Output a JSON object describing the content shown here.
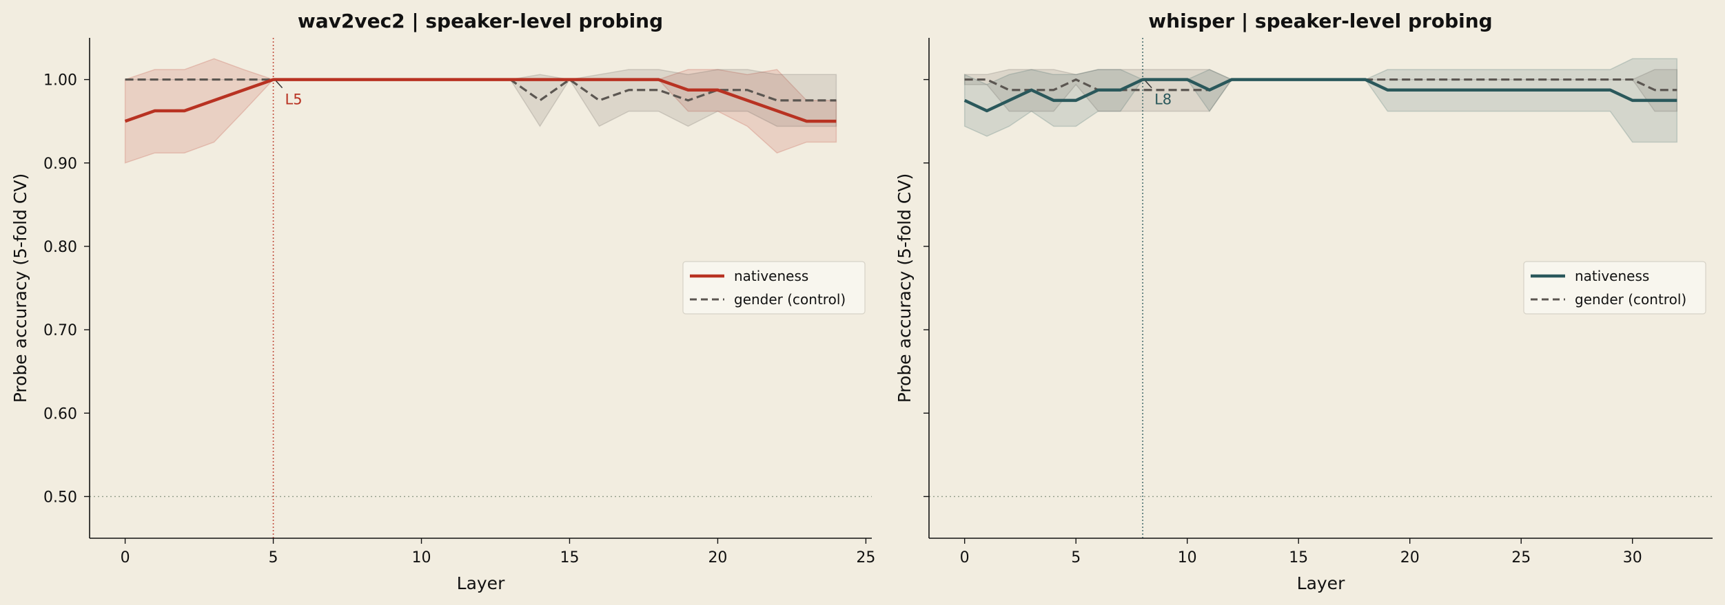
{
  "figure": {
    "background": "#f2ede0"
  },
  "chart_data": [
    {
      "type": "line",
      "title": "wav2vec2  |  speaker-level probing",
      "xlabel": "Layer",
      "ylabel": "Probe accuracy (5-fold CV)",
      "xlim": [
        -1.2,
        25.2
      ],
      "ylim": [
        0.45,
        1.05
      ],
      "xticks": [
        0,
        5,
        10,
        15,
        20,
        25
      ],
      "yticks": [
        0.5,
        0.6,
        0.7,
        0.8,
        0.9,
        1.0
      ],
      "ytick_labels": [
        "0.50",
        "0.60",
        "0.70",
        "0.80",
        "0.90",
        "1.00"
      ],
      "chance_line": 0.5,
      "grid": false,
      "legend_position": "center-right",
      "annotation": {
        "label": "L5",
        "x": 5,
        "y": 1.0,
        "color": "#b83222"
      },
      "series": [
        {
          "name": "nativeness",
          "color": "#b83222",
          "style": "solid",
          "x": [
            0,
            1,
            2,
            3,
            4,
            5,
            6,
            7,
            8,
            9,
            10,
            11,
            12,
            13,
            14,
            15,
            16,
            17,
            18,
            19,
            20,
            21,
            22,
            23,
            24
          ],
          "y": [
            0.95,
            0.9625,
            0.9625,
            0.975,
            0.9875,
            1.0,
            1.0,
            1.0,
            1.0,
            1.0,
            1.0,
            1.0,
            1.0,
            1.0,
            1.0,
            1.0,
            1.0,
            1.0,
            1.0,
            0.9875,
            0.9875,
            0.975,
            0.9625,
            0.95,
            0.95
          ],
          "lower": [
            0.9,
            0.912,
            0.912,
            0.925,
            0.962,
            1.0,
            1.0,
            1.0,
            1.0,
            1.0,
            1.0,
            1.0,
            1.0,
            1.0,
            1.0,
            1.0,
            1.0,
            1.0,
            1.0,
            0.962,
            0.962,
            0.944,
            0.912,
            0.925,
            0.925
          ],
          "upper": [
            1.0,
            1.012,
            1.012,
            1.025,
            1.012,
            1.0,
            1.0,
            1.0,
            1.0,
            1.0,
            1.0,
            1.0,
            1.0,
            1.0,
            1.0,
            1.0,
            1.0,
            1.0,
            1.0,
            1.012,
            1.012,
            1.006,
            1.012,
            0.975,
            0.975
          ]
        },
        {
          "name": "gender (control)",
          "color": "#5b5651",
          "style": "dashed",
          "x": [
            0,
            1,
            2,
            3,
            4,
            5,
            6,
            7,
            8,
            9,
            10,
            11,
            12,
            13,
            14,
            15,
            16,
            17,
            18,
            19,
            20,
            21,
            22,
            23,
            24
          ],
          "y": [
            1.0,
            1.0,
            1.0,
            1.0,
            1.0,
            1.0,
            1.0,
            1.0,
            1.0,
            1.0,
            1.0,
            1.0,
            1.0,
            1.0,
            0.975,
            1.0,
            0.975,
            0.9875,
            0.9875,
            0.975,
            0.9875,
            0.9875,
            0.975,
            0.975,
            0.975
          ],
          "lower": [
            1.0,
            1.0,
            1.0,
            1.0,
            1.0,
            1.0,
            1.0,
            1.0,
            1.0,
            1.0,
            1.0,
            1.0,
            1.0,
            1.0,
            0.944,
            1.0,
            0.944,
            0.962,
            0.962,
            0.944,
            0.962,
            0.962,
            0.944,
            0.944,
            0.944
          ],
          "upper": [
            1.0,
            1.0,
            1.0,
            1.0,
            1.0,
            1.0,
            1.0,
            1.0,
            1.0,
            1.0,
            1.0,
            1.0,
            1.0,
            1.0,
            1.006,
            1.0,
            1.006,
            1.012,
            1.012,
            1.006,
            1.012,
            1.012,
            1.006,
            1.006,
            1.006
          ]
        }
      ]
    },
    {
      "type": "line",
      "title": "whisper  |  speaker-level probing",
      "xlabel": "Layer",
      "ylabel": "Probe accuracy (5-fold CV)",
      "xlim": [
        -1.6,
        33.6
      ],
      "ylim": [
        0.45,
        1.05
      ],
      "xticks": [
        0,
        5,
        10,
        15,
        20,
        25,
        30
      ],
      "yticks": [
        0.5,
        0.6,
        0.7,
        0.8,
        0.9,
        1.0
      ],
      "ytick_labels": [],
      "chance_line": 0.5,
      "grid": false,
      "legend_position": "center-right",
      "annotation": {
        "label": "L8",
        "x": 8,
        "y": 1.0,
        "color": "#2a585b"
      },
      "series": [
        {
          "name": "nativeness",
          "color": "#2a585b",
          "style": "solid",
          "x": [
            0,
            1,
            2,
            3,
            4,
            5,
            6,
            7,
            8,
            9,
            10,
            11,
            12,
            13,
            14,
            15,
            16,
            17,
            18,
            19,
            20,
            21,
            22,
            23,
            24,
            25,
            26,
            27,
            28,
            29,
            30,
            31,
            32
          ],
          "y": [
            0.975,
            0.9625,
            0.975,
            0.9875,
            0.975,
            0.975,
            0.9875,
            0.9875,
            1.0,
            1.0,
            1.0,
            0.9875,
            1.0,
            1.0,
            1.0,
            1.0,
            1.0,
            1.0,
            1.0,
            0.9875,
            0.9875,
            0.9875,
            0.9875,
            0.9875,
            0.9875,
            0.9875,
            0.9875,
            0.9875,
            0.9875,
            0.9875,
            0.975,
            0.975,
            0.975
          ],
          "lower": [
            0.944,
            0.932,
            0.944,
            0.962,
            0.944,
            0.944,
            0.962,
            0.962,
            1.0,
            1.0,
            1.0,
            0.962,
            1.0,
            1.0,
            1.0,
            1.0,
            1.0,
            1.0,
            1.0,
            0.962,
            0.962,
            0.962,
            0.962,
            0.962,
            0.962,
            0.962,
            0.962,
            0.962,
            0.962,
            0.962,
            0.925,
            0.925,
            0.925
          ],
          "upper": [
            1.006,
            0.994,
            1.006,
            1.012,
            1.006,
            1.006,
            1.012,
            1.012,
            1.0,
            1.0,
            1.0,
            1.012,
            1.0,
            1.0,
            1.0,
            1.0,
            1.0,
            1.0,
            1.0,
            1.012,
            1.012,
            1.012,
            1.012,
            1.012,
            1.012,
            1.012,
            1.012,
            1.012,
            1.012,
            1.012,
            1.025,
            1.025,
            1.025
          ]
        },
        {
          "name": "gender (control)",
          "color": "#5b5651",
          "style": "dashed",
          "x": [
            0,
            1,
            2,
            3,
            4,
            5,
            6,
            7,
            8,
            9,
            10,
            11,
            12,
            13,
            14,
            15,
            16,
            17,
            18,
            19,
            20,
            21,
            22,
            23,
            24,
            25,
            26,
            27,
            28,
            29,
            30,
            31,
            32
          ],
          "y": [
            1.0,
            1.0,
            0.9875,
            0.9875,
            0.9875,
            1.0,
            0.9875,
            0.9875,
            0.9875,
            0.9875,
            0.9875,
            0.9875,
            1.0,
            1.0,
            1.0,
            1.0,
            1.0,
            1.0,
            1.0,
            1.0,
            1.0,
            1.0,
            1.0,
            1.0,
            1.0,
            1.0,
            1.0,
            1.0,
            1.0,
            1.0,
            1.0,
            0.9875,
            0.9875
          ],
          "lower": [
            0.994,
            0.994,
            0.962,
            0.962,
            0.962,
            0.994,
            0.962,
            0.962,
            0.962,
            0.962,
            0.962,
            0.962,
            1.0,
            1.0,
            1.0,
            1.0,
            1.0,
            1.0,
            1.0,
            1.0,
            1.0,
            1.0,
            1.0,
            1.0,
            1.0,
            1.0,
            1.0,
            1.0,
            1.0,
            1.0,
            1.0,
            0.962,
            0.962
          ],
          "upper": [
            1.006,
            1.006,
            1.012,
            1.012,
            1.012,
            1.006,
            1.012,
            1.012,
            1.012,
            1.012,
            1.012,
            1.012,
            1.0,
            1.0,
            1.0,
            1.0,
            1.0,
            1.0,
            1.0,
            1.0,
            1.0,
            1.0,
            1.0,
            1.0,
            1.0,
            1.0,
            1.0,
            1.0,
            1.0,
            1.0,
            1.0,
            1.012,
            1.012
          ]
        }
      ]
    }
  ]
}
